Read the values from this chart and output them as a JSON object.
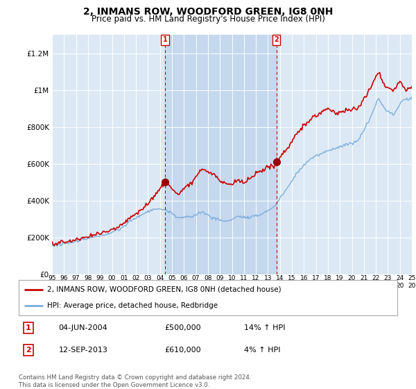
{
  "title": "2, INMANS ROW, WOODFORD GREEN, IG8 0NH",
  "subtitle": "Price paid vs. HM Land Registry's House Price Index (HPI)",
  "title_fontsize": 10,
  "subtitle_fontsize": 8.5,
  "background_color": "#ffffff",
  "plot_bg_color": "#dce9f5",
  "shade_color": "#c5d8ee",
  "ylim": [
    0,
    1300000
  ],
  "yticks": [
    0,
    200000,
    400000,
    600000,
    800000,
    1000000,
    1200000
  ],
  "ytick_labels": [
    "£0",
    "£200K",
    "£400K",
    "£600K",
    "£800K",
    "£1M",
    "£1.2M"
  ],
  "sale1_year": 2004.42,
  "sale1_price": 500000,
  "sale2_year": 2013.71,
  "sale2_price": 610000,
  "sale1_date": "04-JUN-2004",
  "sale1_hpi_text": "14% ↑ HPI",
  "sale2_date": "12-SEP-2013",
  "sale2_hpi_text": "4% ↑ HPI",
  "legend_label_house": "2, INMANS ROW, WOODFORD GREEN, IG8 0NH (detached house)",
  "legend_label_hpi": "HPI: Average price, detached house, Redbridge",
  "footer": "Contains HM Land Registry data © Crown copyright and database right 2024.\nThis data is licensed under the Open Government Licence v3.0.",
  "house_color": "#cc0000",
  "hpi_color": "#7aabdb",
  "grid_color": "#e0e0e0",
  "sale_dot_color": "#990000"
}
